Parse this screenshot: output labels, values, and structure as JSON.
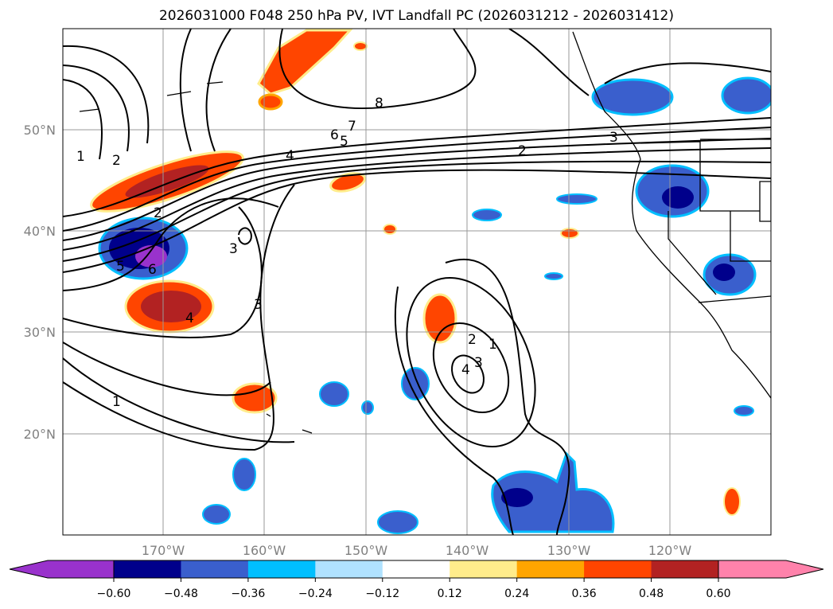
{
  "title": "2026031000 F048 250 hPa PV, IVT Landfall PC (2026031212 - 2026031412)",
  "map": {
    "lon_range": [
      -180,
      -110
    ],
    "lat_range": [
      10,
      60
    ],
    "lon_ticks": [
      {
        "lon": -170,
        "label": "170°W"
      },
      {
        "lon": -160,
        "label": "160°W"
      },
      {
        "lon": -150,
        "label": "150°W"
      },
      {
        "lon": -140,
        "label": "140°W"
      },
      {
        "lon": -130,
        "label": "130°W"
      },
      {
        "lon": -120,
        "label": "120°W"
      }
    ],
    "lat_ticks": [
      {
        "lat": 50,
        "label": "50°N"
      },
      {
        "lat": 40,
        "label": "40°N"
      },
      {
        "lat": 30,
        "label": "30°N"
      },
      {
        "lat": 20,
        "label": "20°N"
      }
    ],
    "contour_labels": [
      "1",
      "2",
      "8",
      "7",
      "6",
      "5",
      "4",
      "2",
      "3",
      "2",
      "6",
      "5",
      "3",
      "3",
      "4",
      "1",
      "1",
      "2",
      "3",
      "4"
    ]
  },
  "colorbar": {
    "colors": [
      "#9932CC",
      "#00008B",
      "#3A5FCD",
      "#00BFFF",
      "#B0E2FF",
      "#FFFFFF",
      "#FFEC8B",
      "#FFA500",
      "#FF4500",
      "#B22222",
      "#FF82AB"
    ],
    "labels": [
      "−0.60",
      "−0.48",
      "−0.36",
      "−0.24",
      "−0.12",
      "0.12",
      "0.24",
      "0.36",
      "0.48",
      "0.60"
    ]
  }
}
